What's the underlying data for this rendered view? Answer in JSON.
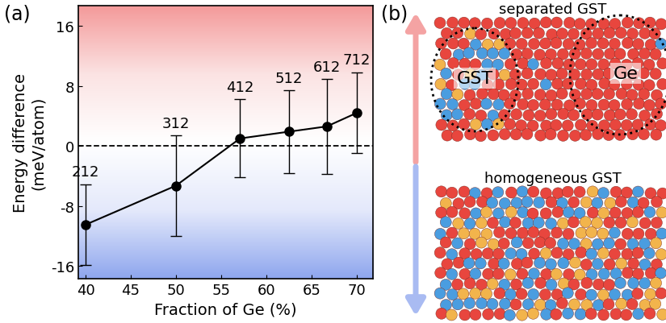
{
  "chart_data": {
    "type": "line",
    "title": "(a)",
    "x_label": "Fraction of Ge (%)",
    "y_label": "Energy difference\n(meV/atom)",
    "x": [
      40,
      50,
      57.1,
      62.5,
      66.7,
      70
    ],
    "values": [
      -10.5,
      -5.3,
      1.0,
      1.9,
      2.6,
      4.4
    ],
    "errors": [
      5.4,
      6.7,
      5.2,
      5.5,
      6.3,
      5.4
    ],
    "point_labels": [
      "212",
      "312",
      "412",
      "512",
      "612",
      "712"
    ],
    "color": "#000000",
    "marker": "o",
    "xlim": [
      39.2,
      71.8
    ],
    "xticks": [
      40,
      45,
      50,
      55,
      60,
      65,
      70
    ],
    "ylim": [
      -17.7,
      18.7
    ],
    "yticks": [
      -16,
      -8,
      0,
      8,
      16
    ],
    "reference_line": 0,
    "grid": false
  },
  "diagram": {
    "label": "(b)",
    "top": {
      "title": "separated GST",
      "regions": [
        "GST",
        "Ge"
      ]
    },
    "bottom": {
      "title": "homogeneous GST"
    }
  }
}
